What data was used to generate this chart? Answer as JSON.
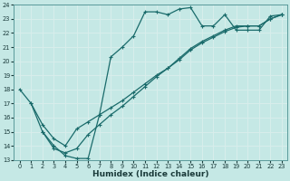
{
  "bg_color": "#c5e8e5",
  "grid_color": "#d8eeec",
  "line_color": "#1a6b6b",
  "xlabel": "Humidex (Indice chaleur)",
  "xlim": [
    -0.5,
    23.5
  ],
  "ylim": [
    13,
    24
  ],
  "xticks": [
    0,
    1,
    2,
    3,
    4,
    5,
    6,
    7,
    8,
    9,
    10,
    11,
    12,
    13,
    14,
    15,
    16,
    17,
    18,
    19,
    20,
    21,
    22,
    23
  ],
  "yticks": [
    13,
    14,
    15,
    16,
    17,
    18,
    19,
    20,
    21,
    22,
    23,
    24
  ],
  "line1_x": [
    0,
    1,
    2,
    3,
    4,
    5,
    6,
    7,
    8,
    9,
    10,
    11,
    12,
    13,
    14,
    15,
    16,
    17,
    18,
    19,
    20,
    21,
    22,
    23
  ],
  "line1_y": [
    18,
    17,
    15,
    14,
    13.3,
    13.1,
    13.1,
    16.2,
    20.3,
    21.0,
    21.8,
    23.5,
    23.5,
    23.3,
    23.7,
    23.8,
    22.5,
    22.5,
    23.3,
    22.2,
    22.2,
    22.2,
    23.2,
    23.3
  ],
  "line2_x": [
    1,
    2,
    3,
    4,
    5,
    6,
    7,
    8,
    9,
    10,
    11,
    12,
    13,
    14,
    15,
    16,
    17,
    18,
    19,
    20,
    21,
    22,
    23
  ],
  "line2_y": [
    17.0,
    15.5,
    14.5,
    14.0,
    15.2,
    15.7,
    16.2,
    16.7,
    17.2,
    17.8,
    18.4,
    19.0,
    19.5,
    20.1,
    20.8,
    21.3,
    21.7,
    22.1,
    22.4,
    22.5,
    22.5,
    23.0,
    23.3
  ],
  "line3_x": [
    2,
    3,
    4,
    5,
    6,
    7,
    8,
    9,
    10,
    11,
    12,
    13,
    14,
    15,
    16,
    17,
    18,
    19,
    20,
    21,
    22,
    23
  ],
  "line3_y": [
    15.0,
    13.8,
    13.5,
    13.8,
    14.8,
    15.5,
    16.2,
    16.8,
    17.5,
    18.2,
    18.9,
    19.5,
    20.2,
    20.9,
    21.4,
    21.8,
    22.2,
    22.5,
    22.5,
    22.5,
    23.0,
    23.3
  ]
}
